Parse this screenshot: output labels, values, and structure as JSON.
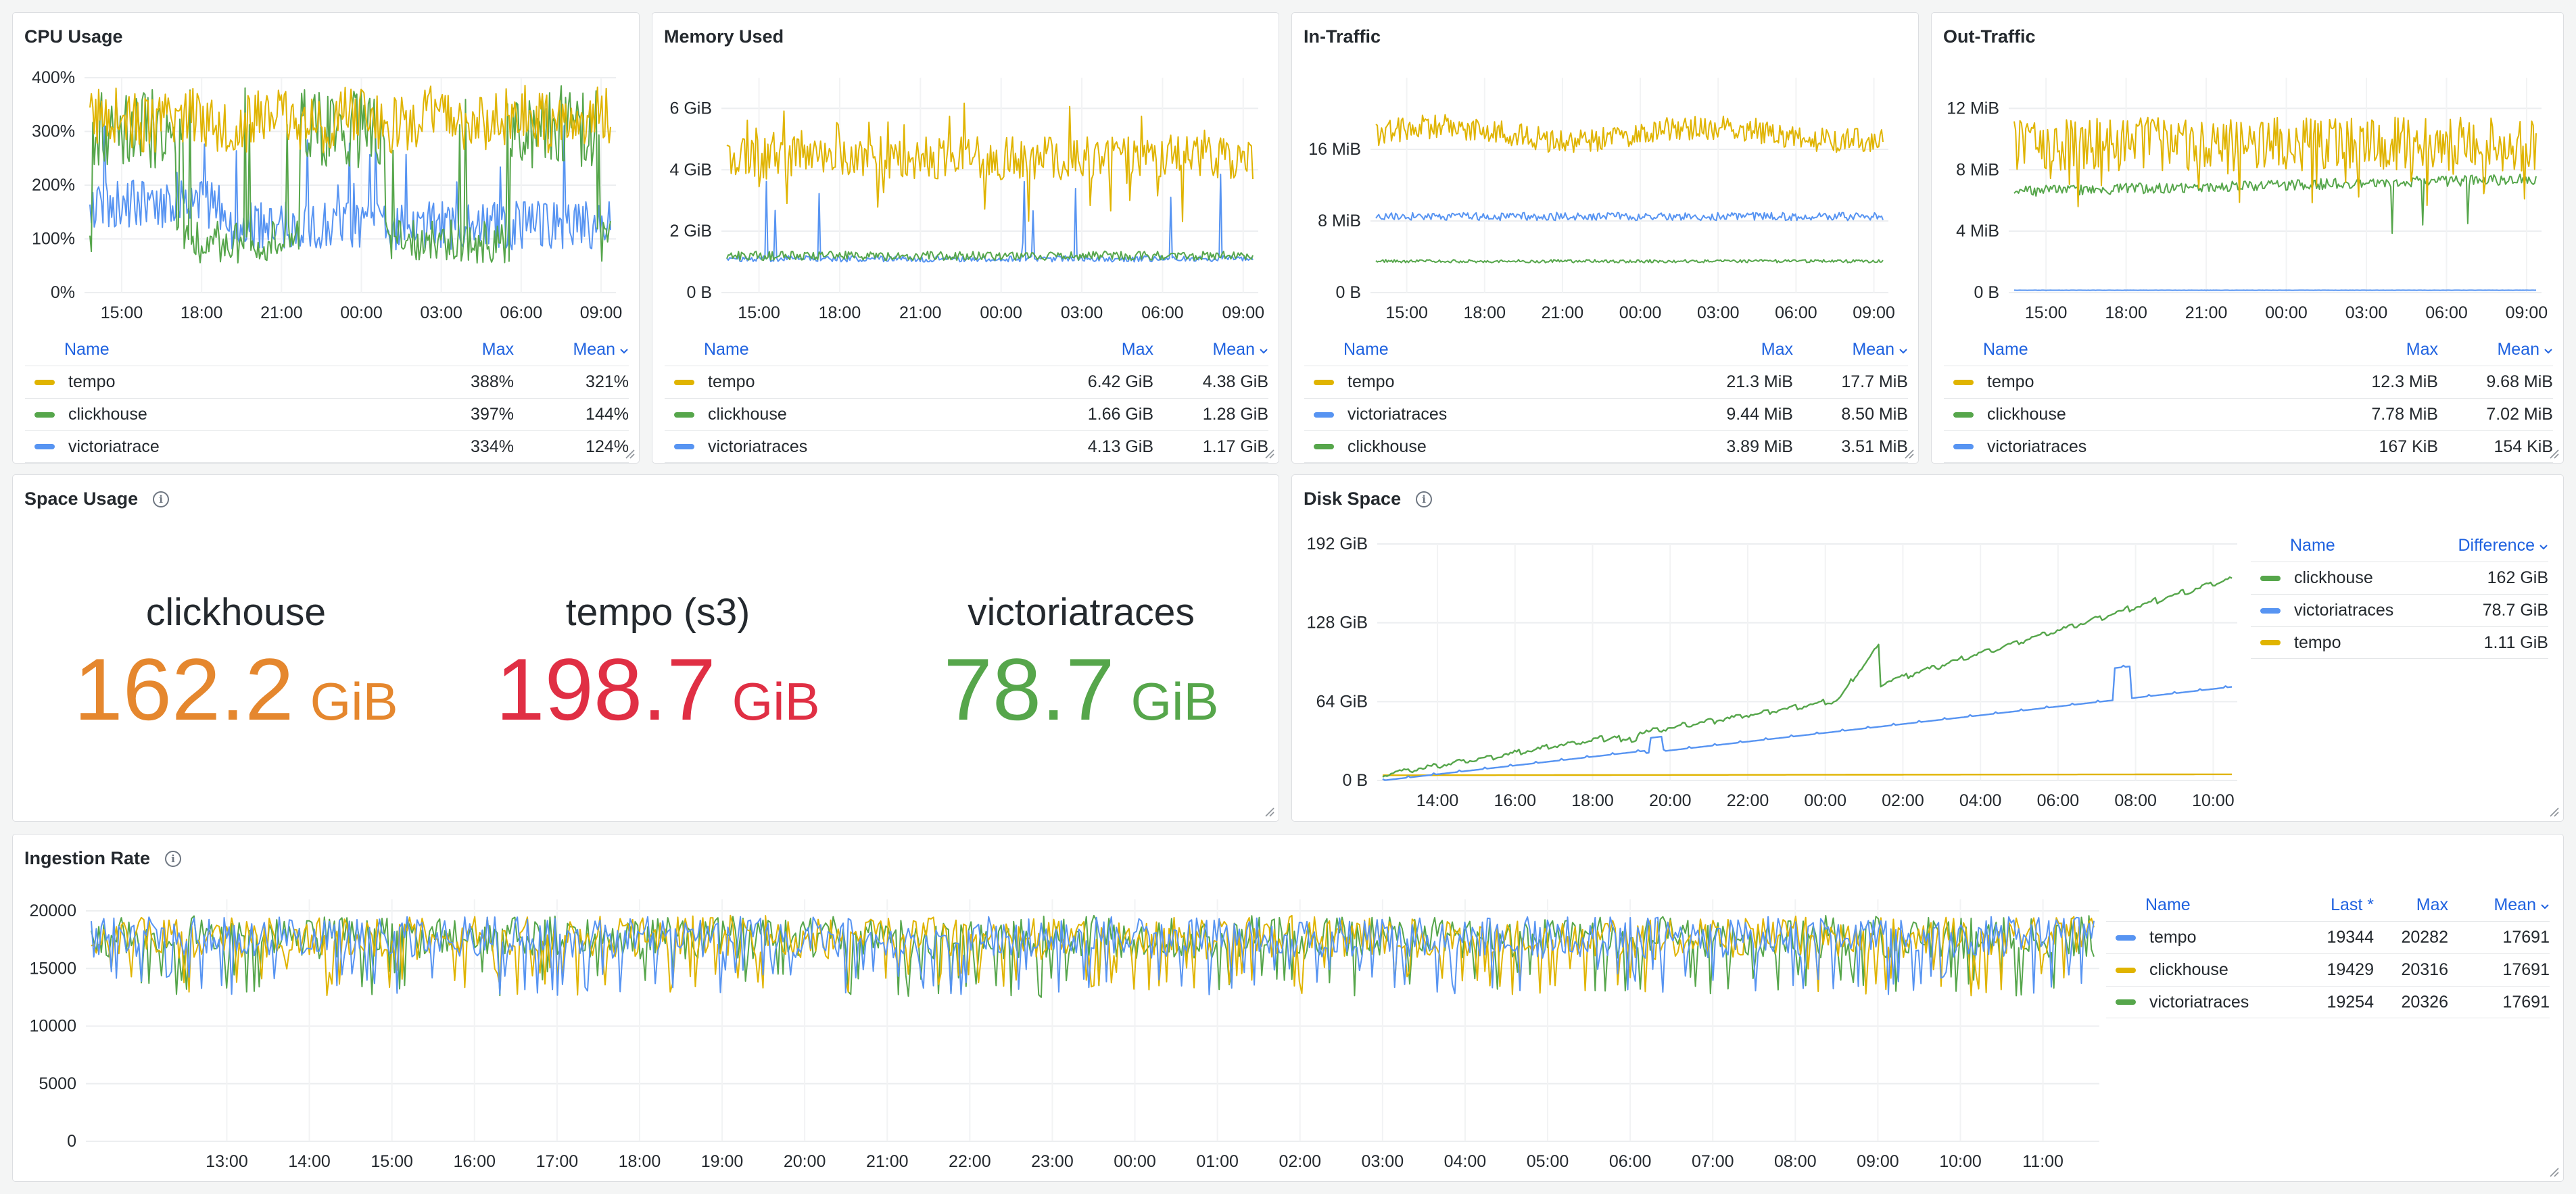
{
  "panels": {
    "cpu": {
      "title": "CPU Usage"
    },
    "memory": {
      "title": "Memory Used"
    },
    "intraffic": {
      "title": "In-Traffic"
    },
    "outtraffic": {
      "title": "Out-Traffic"
    },
    "space": {
      "title": "Space Usage"
    },
    "disk": {
      "title": "Disk Space"
    },
    "ingestion": {
      "title": "Ingestion Rate"
    }
  },
  "colors": {
    "yellow": "#e0b400",
    "green": "#56a64b",
    "blue": "#5794f2",
    "orange": "#e5872e",
    "red": "#e02f44"
  },
  "icons": [
    "info-icon",
    "chevron-down-icon",
    "resize-handle-icon"
  ],
  "legend": {
    "cpu": {
      "headers": {
        "name": "Name",
        "max": "Max",
        "mean": "Mean"
      },
      "rows": [
        {
          "name": "tempo",
          "color": "#e0b400",
          "max": "388%",
          "mean": "321%"
        },
        {
          "name": "clickhouse",
          "color": "#56a64b",
          "max": "397%",
          "mean": "144%"
        },
        {
          "name": "victoriatrace",
          "color": "#5794f2",
          "max": "334%",
          "mean": "124%"
        }
      ]
    },
    "memory": {
      "headers": {
        "name": "Name",
        "max": "Max",
        "mean": "Mean"
      },
      "rows": [
        {
          "name": "tempo",
          "color": "#e0b400",
          "max": "6.42 GiB",
          "mean": "4.38 GiB"
        },
        {
          "name": "clickhouse",
          "color": "#56a64b",
          "max": "1.66 GiB",
          "mean": "1.28 GiB"
        },
        {
          "name": "victoriatraces",
          "color": "#5794f2",
          "max": "4.13 GiB",
          "mean": "1.17 GiB"
        }
      ]
    },
    "intraffic": {
      "headers": {
        "name": "Name",
        "max": "Max",
        "mean": "Mean"
      },
      "rows": [
        {
          "name": "tempo",
          "color": "#e0b400",
          "max": "21.3 MiB",
          "mean": "17.7 MiB"
        },
        {
          "name": "victoriatraces",
          "color": "#5794f2",
          "max": "9.44 MiB",
          "mean": "8.50 MiB"
        },
        {
          "name": "clickhouse",
          "color": "#56a64b",
          "max": "3.89 MiB",
          "mean": "3.51 MiB"
        }
      ]
    },
    "outtraffic": {
      "headers": {
        "name": "Name",
        "max": "Max",
        "mean": "Mean"
      },
      "rows": [
        {
          "name": "tempo",
          "color": "#e0b400",
          "max": "12.3 MiB",
          "mean": "9.68 MiB"
        },
        {
          "name": "clickhouse",
          "color": "#56a64b",
          "max": "7.78 MiB",
          "mean": "7.02 MiB"
        },
        {
          "name": "victoriatraces",
          "color": "#5794f2",
          "max": "167 KiB",
          "mean": "154 KiB"
        }
      ]
    },
    "disk": {
      "headers": {
        "name": "Name",
        "difference": "Difference"
      },
      "rows": [
        {
          "name": "clickhouse",
          "color": "#56a64b",
          "difference": "162 GiB"
        },
        {
          "name": "victoriatraces",
          "color": "#5794f2",
          "difference": "78.7 GiB"
        },
        {
          "name": "tempo",
          "color": "#e0b400",
          "difference": "1.11 GiB"
        }
      ]
    },
    "ingestion": {
      "headers": {
        "name": "Name",
        "last": "Last *",
        "max": "Max",
        "mean": "Mean"
      },
      "rows": [
        {
          "name": "tempo",
          "color": "#5794f2",
          "last": "19344",
          "max": "20282",
          "mean": "17691"
        },
        {
          "name": "clickhouse",
          "color": "#e0b400",
          "last": "19429",
          "max": "20316",
          "mean": "17691"
        },
        {
          "name": "victoriatraces",
          "color": "#56a64b",
          "last": "19254",
          "max": "20326",
          "mean": "17691"
        }
      ]
    }
  },
  "stats": [
    {
      "name": "clickhouse",
      "value": "162.2",
      "unit": "GiB",
      "color": "#e5872e"
    },
    {
      "name": "tempo (s3)",
      "value": "198.7",
      "unit": "GiB",
      "color": "#e02f44"
    },
    {
      "name": "victoriatraces",
      "value": "78.7",
      "unit": "GiB",
      "color": "#56a64b"
    }
  ],
  "chart_data": [
    {
      "id": "cpu",
      "type": "line",
      "title": "CPU Usage",
      "x_ticks": [
        "15:00",
        "18:00",
        "21:00",
        "00:00",
        "03:00",
        "06:00",
        "09:00"
      ],
      "y_ticks": [
        "0%",
        "100%",
        "200%",
        "300%",
        "400%"
      ],
      "ylim": [
        0,
        400
      ],
      "grid": true,
      "legend": "bottom",
      "series": [
        {
          "name": "tempo",
          "color": "#e0b400",
          "mean": 321,
          "max": 388
        },
        {
          "name": "clickhouse",
          "color": "#56a64b",
          "mean": 144,
          "max": 397
        },
        {
          "name": "victoriatrace",
          "color": "#5794f2",
          "mean": 124,
          "max": 334
        }
      ]
    },
    {
      "id": "memory",
      "type": "line",
      "title": "Memory Used",
      "x_ticks": [
        "15:00",
        "18:00",
        "21:00",
        "00:00",
        "03:00",
        "06:00",
        "09:00"
      ],
      "y_ticks": [
        "0 B",
        "2 GiB",
        "4 GiB",
        "6 GiB"
      ],
      "ylim": [
        0,
        7
      ],
      "grid": true,
      "legend": "bottom",
      "series": [
        {
          "name": "tempo",
          "color": "#e0b400",
          "mean": 4.38,
          "max": 6.42
        },
        {
          "name": "clickhouse",
          "color": "#56a64b",
          "mean": 1.28,
          "max": 1.66
        },
        {
          "name": "victoriatraces",
          "color": "#5794f2",
          "mean": 1.17,
          "max": 4.13
        }
      ]
    },
    {
      "id": "intraffic",
      "type": "line",
      "title": "In-Traffic",
      "x_ticks": [
        "15:00",
        "18:00",
        "21:00",
        "00:00",
        "03:00",
        "06:00",
        "09:00"
      ],
      "y_ticks": [
        "0 B",
        "8 MiB",
        "16 MiB"
      ],
      "ylim": [
        0,
        24
      ],
      "grid": true,
      "legend": "bottom",
      "series": [
        {
          "name": "tempo",
          "color": "#e0b400",
          "mean": 17.7,
          "max": 21.3
        },
        {
          "name": "victoriatraces",
          "color": "#5794f2",
          "mean": 8.5,
          "max": 9.44
        },
        {
          "name": "clickhouse",
          "color": "#56a64b",
          "mean": 3.51,
          "max": 3.89
        }
      ]
    },
    {
      "id": "outtraffic",
      "type": "line",
      "title": "Out-Traffic",
      "x_ticks": [
        "15:00",
        "18:00",
        "21:00",
        "00:00",
        "03:00",
        "06:00",
        "09:00"
      ],
      "y_ticks": [
        "0 B",
        "4 MiB",
        "8 MiB",
        "12 MiB"
      ],
      "ylim": [
        0,
        14
      ],
      "grid": true,
      "legend": "bottom",
      "series": [
        {
          "name": "tempo",
          "color": "#e0b400",
          "mean": 9.68,
          "max": 12.3
        },
        {
          "name": "clickhouse",
          "color": "#56a64b",
          "mean": 7.02,
          "max": 7.78
        },
        {
          "name": "victoriatraces",
          "color": "#5794f2",
          "mean": 0.15,
          "max": 0.163
        }
      ]
    },
    {
      "id": "disk",
      "type": "line",
      "title": "Disk Space",
      "x_ticks": [
        "14:00",
        "16:00",
        "18:00",
        "20:00",
        "22:00",
        "00:00",
        "02:00",
        "04:00",
        "06:00",
        "08:00",
        "10:00"
      ],
      "y_ticks": [
        "0 B",
        "64 GiB",
        "128 GiB",
        "192 GiB"
      ],
      "ylim": [
        0,
        192
      ],
      "grid": true,
      "legend": "right",
      "series": [
        {
          "name": "clickhouse",
          "color": "#56a64b",
          "start": 2,
          "end": 164,
          "difference": "162 GiB"
        },
        {
          "name": "victoriatraces",
          "color": "#5794f2",
          "start": 0,
          "end": 79,
          "difference": "78.7 GiB"
        },
        {
          "name": "tempo",
          "color": "#e0b400",
          "start": 4,
          "end": 5,
          "difference": "1.11 GiB"
        }
      ]
    },
    {
      "id": "ingestion",
      "type": "line",
      "title": "Ingestion Rate",
      "x_ticks": [
        "13:00",
        "14:00",
        "15:00",
        "16:00",
        "17:00",
        "18:00",
        "19:00",
        "20:00",
        "21:00",
        "22:00",
        "23:00",
        "00:00",
        "01:00",
        "02:00",
        "03:00",
        "04:00",
        "05:00",
        "06:00",
        "07:00",
        "08:00",
        "09:00",
        "10:00",
        "11:00"
      ],
      "y_ticks": [
        "0",
        "5000",
        "10000",
        "15000",
        "20000"
      ],
      "ylim": [
        0,
        21000
      ],
      "grid": true,
      "legend": "right",
      "series": [
        {
          "name": "tempo",
          "color": "#5794f2",
          "last": 19344,
          "max": 20282,
          "mean": 17691
        },
        {
          "name": "clickhouse",
          "color": "#e0b400",
          "last": 19429,
          "max": 20316,
          "mean": 17691
        },
        {
          "name": "victoriatraces",
          "color": "#56a64b",
          "last": 19254,
          "max": 20326,
          "mean": 17691
        }
      ]
    }
  ]
}
